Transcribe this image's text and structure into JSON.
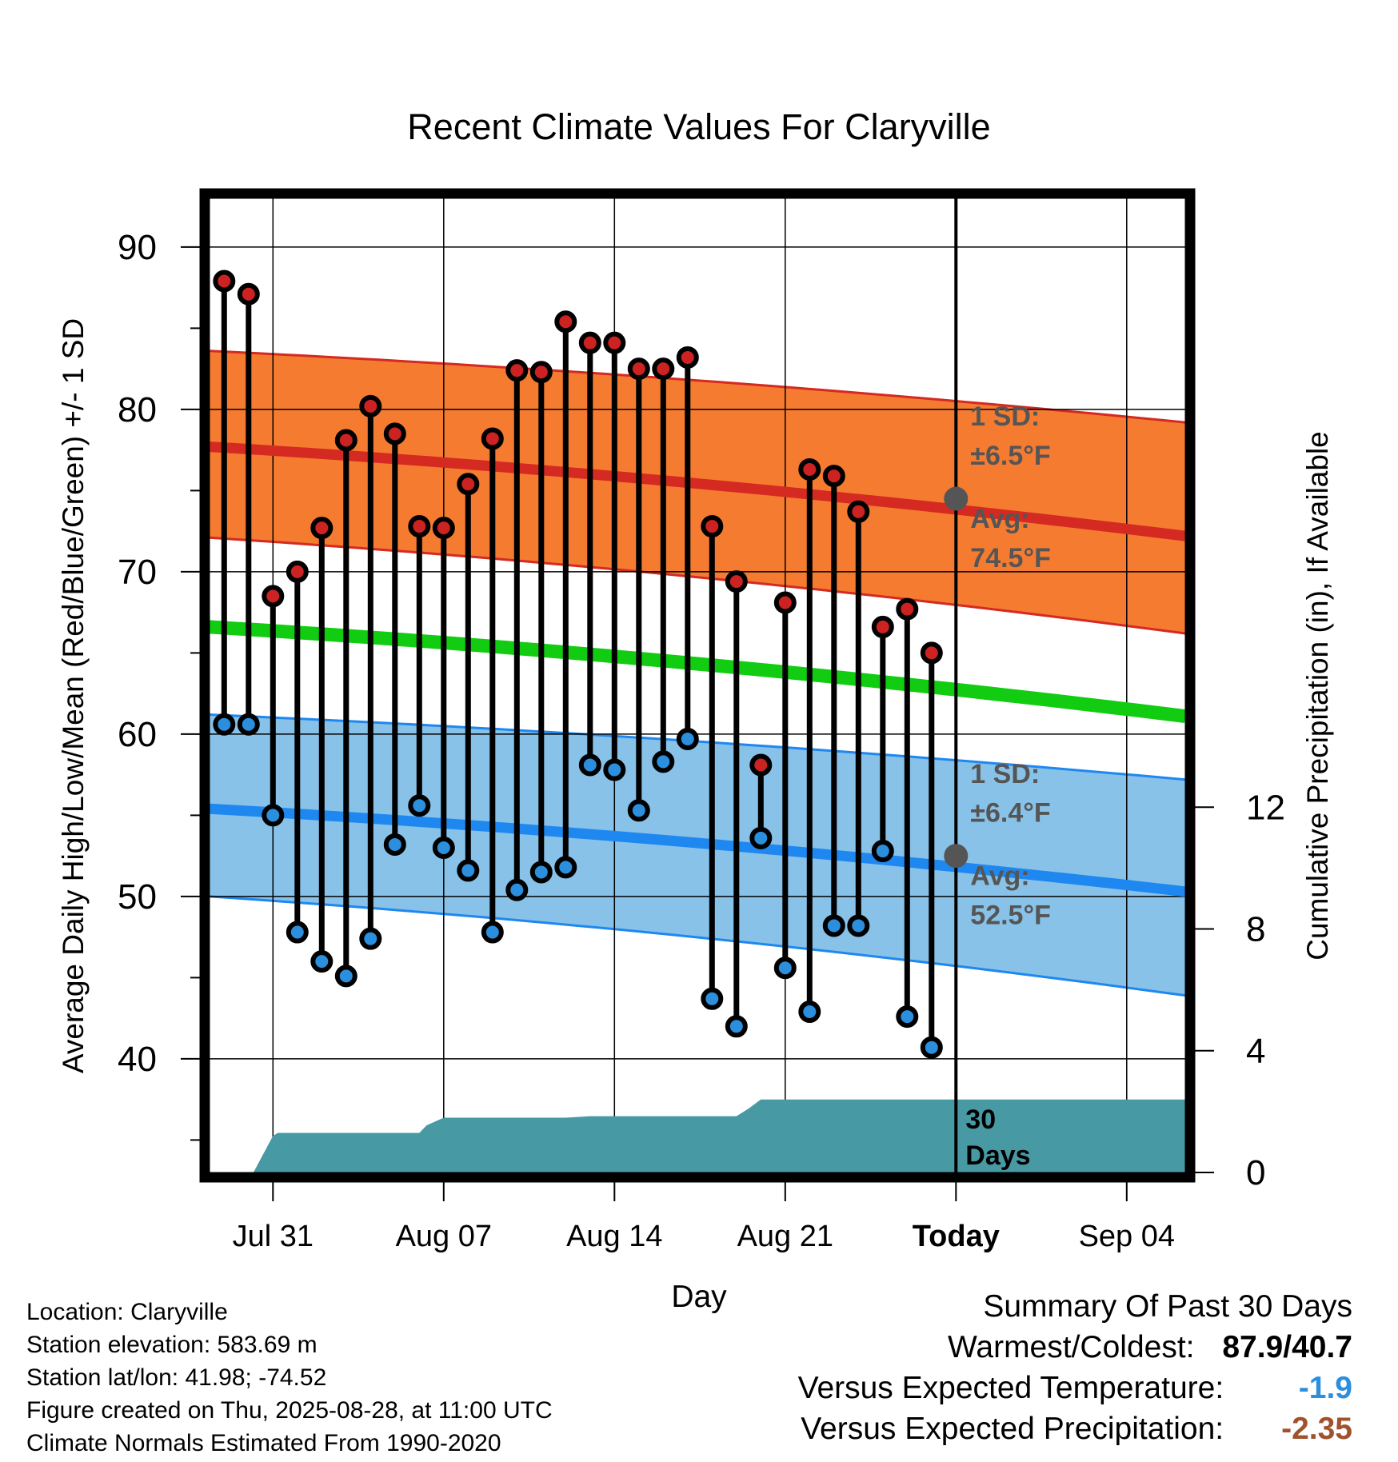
{
  "chart_data": {
    "type": "line",
    "title": "Recent Climate Values For Claryville",
    "xlabel": "Day",
    "ylabel": "Average Daily High/Low/Mean (Red/Blue/Green) +/- 1 SD",
    "y2label": "Cumulative Precipitation (in), If Available",
    "ylim": [
      33,
      93
    ],
    "y2lim": [
      0,
      32
    ],
    "y_ticks": [
      40,
      50,
      60,
      70,
      80,
      90
    ],
    "y2_ticks": [
      0,
      4,
      8,
      12
    ],
    "x_ticks": [
      "Jul 31",
      "Aug 07",
      "Aug 14",
      "Aug 21",
      "Today",
      "Sep 04"
    ],
    "x_tick_days": [
      0,
      7,
      14,
      21,
      28,
      35
    ],
    "x_range_days": [
      -2.6,
      37.4
    ],
    "grid": true,
    "days": [
      -2,
      -1,
      0,
      1,
      2,
      3,
      4,
      5,
      6,
      7,
      8,
      9,
      10,
      11,
      12,
      13,
      14,
      15,
      16,
      17,
      18,
      19,
      20,
      21,
      22,
      23,
      24,
      25,
      26,
      27
    ],
    "series": [
      {
        "name": "High",
        "color": "#cc2222",
        "values": [
          87.9,
          87.1,
          68.5,
          70.0,
          72.7,
          78.1,
          80.2,
          78.5,
          72.8,
          72.7,
          75.4,
          78.2,
          82.4,
          82.3,
          85.4,
          84.1,
          84.1,
          82.5,
          82.5,
          83.2,
          72.8,
          69.4,
          58.1,
          68.1,
          76.3,
          75.9,
          73.7,
          66.6,
          67.7,
          65.0
        ]
      },
      {
        "name": "Low",
        "color": "#2b8fdd",
        "values": [
          60.6,
          60.6,
          55.0,
          47.8,
          46.0,
          45.1,
          47.4,
          53.2,
          55.6,
          53.0,
          51.6,
          47.8,
          50.4,
          51.5,
          51.8,
          58.1,
          57.8,
          55.3,
          58.3,
          59.7,
          43.7,
          42.0,
          53.6,
          45.6,
          42.9,
          48.2,
          48.2,
          52.8,
          42.6,
          40.7
        ]
      }
    ],
    "normals": {
      "days": [
        -2.6,
        37.4
      ],
      "high_avg": [
        77.7,
        72.2
      ],
      "high_sd_upper": [
        83.6,
        79.2
      ],
      "high_sd_lower": [
        72.1,
        66.2
      ],
      "mean_avg": [
        66.6,
        61.1
      ],
      "low_avg": [
        55.4,
        50.3
      ],
      "low_sd_upper": [
        61.2,
        57.2
      ],
      "low_sd_lower": [
        50.0,
        43.9
      ]
    },
    "precip_cumulative": {
      "days": [
        -2.6,
        -0.8,
        0,
        0.2,
        1,
        6,
        6.3,
        7,
        12,
        13,
        18,
        19,
        19.5,
        20,
        37.4
      ],
      "values": [
        0,
        0,
        1.2,
        1.3,
        1.3,
        1.3,
        1.55,
        1.8,
        1.8,
        1.85,
        1.85,
        1.85,
        2.1,
        2.4,
        2.4
      ]
    },
    "annotations": {
      "high_sd_line1": "1 SD:",
      "high_sd_line2": "±6.5°F",
      "high_avg_line1": "Avg:",
      "high_avg_line2": "74.5°F",
      "high_avg_today": 74.5,
      "low_sd_line1": "1 SD:",
      "low_sd_line2": "±6.4°F",
      "low_avg_line1": "Avg:",
      "low_avg_line2": "52.5°F",
      "low_avg_today": 52.5,
      "days_line1": "30",
      "days_line2": "Days"
    },
    "colors": {
      "high_band": "#f47b30",
      "high_line": "#d42a22",
      "mean_line": "#11cc11",
      "low_band": "#88c2e8",
      "low_line": "#1e88f0",
      "precip_fill": "#4799a4",
      "high_dot": "#cc2222",
      "low_dot": "#2b8fdd",
      "today_dot": "#555555"
    }
  },
  "info": {
    "location": "Location: Claryville",
    "elevation": "Station elevation: 583.69 m",
    "latlon": "Station lat/lon: 41.98; -74.52",
    "created": "Figure created on Thu, 2025-08-28, at 11:00 UTC",
    "normals": "Climate Normals Estimated From 1990-2020"
  },
  "summary": {
    "title": "Summary Of Past 30 Days",
    "warm_label": "Warmest/Coldest:",
    "warm_value": "87.9/40.7",
    "temp_label": "Versus Expected Temperature:",
    "temp_value": "-1.9",
    "temp_color": "#2b8fdd",
    "precip_label": "Versus Expected Precipitation:",
    "precip_value": "-2.35",
    "precip_color": "#a0522d"
  }
}
